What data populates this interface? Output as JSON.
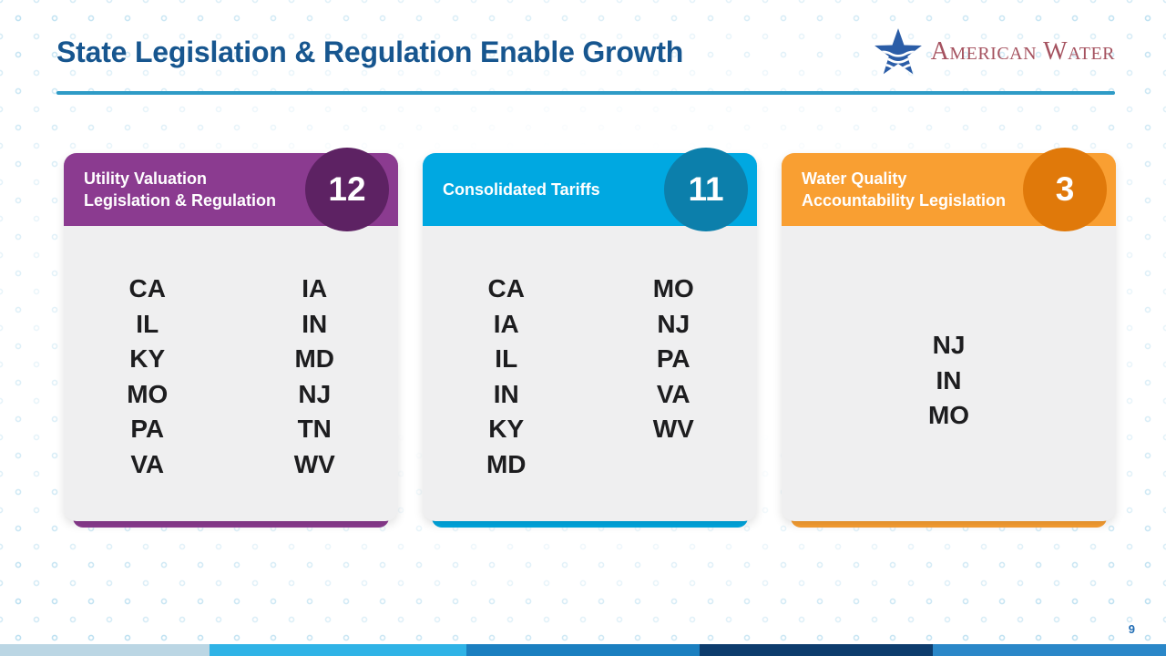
{
  "colors": {
    "title": "#17568F",
    "divider": "#2E9BC6",
    "page_number": "#1F6CB4",
    "logo_text": "#A5525F",
    "logo_star": "#2B5DA7",
    "state_text": "#1D1D1F",
    "card_body": "#EFEFF0"
  },
  "header": {
    "title": "State Legislation & Regulation Enable Growth",
    "logo_text": "American Water"
  },
  "cards": [
    {
      "title_line1": "Utility Valuation",
      "title_line2": "Legislation & Regulation",
      "count": "12",
      "header_color": "#8B3B90",
      "badge_color": "#5D2263",
      "col1": [
        "CA",
        "IL",
        "KY",
        "MO",
        "PA",
        "VA"
      ],
      "col2": [
        "IA",
        "IN",
        "MD",
        "NJ",
        "TN",
        "WV"
      ]
    },
    {
      "title_line1": "Consolidated Tariffs",
      "title_line2": "",
      "count": "11",
      "header_color": "#00A8E1",
      "badge_color": "#0C7FAB",
      "col1": [
        "CA",
        "IA",
        "IL",
        "IN",
        "KY",
        "MD"
      ],
      "col2": [
        "MO",
        "NJ",
        "PA",
        "VA",
        "WV"
      ]
    },
    {
      "title_line1": "Water Quality",
      "title_line2": "Accountability Legislation",
      "count": "3",
      "header_color": "#F99F32",
      "badge_color": "#E0790A",
      "col1": [
        "NJ",
        "IN",
        "MO"
      ],
      "col2": []
    }
  ],
  "footer": {
    "page_number": "9",
    "segments": [
      {
        "width": "18%",
        "color": "#BBD6E4"
      },
      {
        "width": "22%",
        "color": "#2FB3E6"
      },
      {
        "width": "20%",
        "color": "#1B7FC0"
      },
      {
        "width": "20%",
        "color": "#0D3C6D"
      },
      {
        "width": "20%",
        "color": "#2A87C8"
      }
    ]
  }
}
